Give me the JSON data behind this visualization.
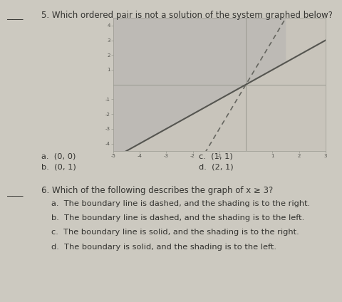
{
  "bg_color": "#ccc9c0",
  "graph_bg": "#c8c4bb",
  "graph_xlim": [
    -5,
    3
  ],
  "graph_ylim": [
    -4.5,
    4.5
  ],
  "solid_line_slope": 1,
  "solid_line_intercept": 0,
  "dashed_line_slope": 3,
  "dashed_line_intercept": 0,
  "solid_line_color": "#555550",
  "dashed_line_color": "#666660",
  "shade_color": "#aaaaaa",
  "shade_alpha": 0.35,
  "q5_text": "5. Which ordered pair is not a solution of the system graphed below?",
  "q5_a": "a.  (0, 0)",
  "q5_c": "c.  (1, 1)",
  "q5_b": "b.  (0, 1)",
  "q5_d": "d.  (2, 1)",
  "q6_text": "6. Which of the following describes the graph of x ≥ 3?",
  "q6_a": "a.  The boundary line is dashed, and the shading is to the right.",
  "q6_b": "b.  The boundary line is dashed, and the shading is to the left.",
  "q6_c": "c.  The boundary line is solid, and the shading is to the right.",
  "q6_d": "d.  The boundary is solid, and the shading is to the left.",
  "text_color": "#333330",
  "font_size_q": 8.5,
  "font_size_ans": 8.2,
  "xticks": [
    -5,
    -4,
    -3,
    -2,
    -1,
    1,
    2,
    3
  ],
  "yticks": [
    -4,
    -3,
    -2,
    -1,
    1,
    2,
    3,
    4
  ]
}
